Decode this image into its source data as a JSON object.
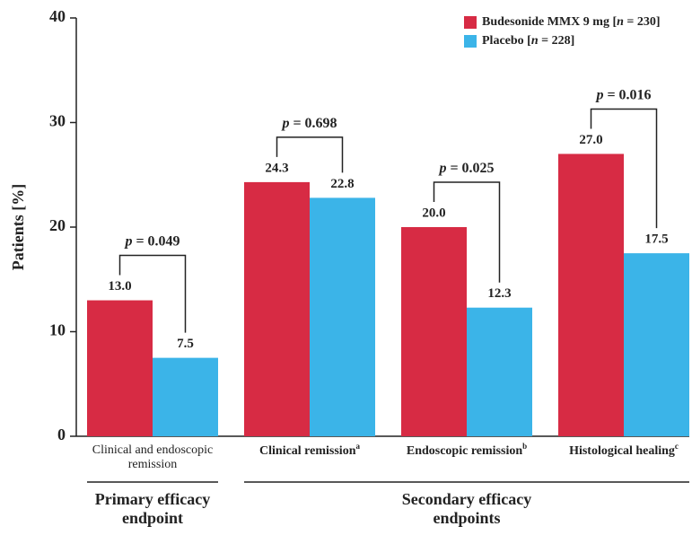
{
  "chart_data": {
    "type": "bar",
    "categories": [
      "Clinical and endoscopic remission",
      "Clinical remission",
      "Endoscopic remission",
      "Histological healing"
    ],
    "category_superscripts": [
      null,
      "a",
      "b",
      "c"
    ],
    "series": [
      {
        "name_bold": "Budesonide MMX 9 mg [",
        "name_italic": "n",
        "name_rest": " = 230]",
        "color": "#d72b44",
        "values": [
          13.0,
          24.3,
          20.0,
          27.0
        ],
        "value_labels": [
          "13.0",
          "24.3",
          "20.0",
          "27.0"
        ]
      },
      {
        "name_bold": "Placebo [",
        "name_italic": "n",
        "name_rest": " = 228]",
        "color": "#3bb4e8",
        "values": [
          7.5,
          22.8,
          12.3,
          17.5
        ],
        "value_labels": [
          "7.5",
          "22.8",
          "12.3",
          "17.5"
        ]
      }
    ],
    "annotations": [
      {
        "italic": "p",
        "text": " = 0.049"
      },
      {
        "italic": "p",
        "text": " = 0.698"
      },
      {
        "italic": "p",
        "text": " = 0.025"
      },
      {
        "italic": "p",
        "text": " = 0.016"
      }
    ],
    "ylabel": "Patients [%]",
    "ylim": [
      0,
      40
    ],
    "yticks": [
      0,
      10,
      20,
      30,
      40
    ],
    "endpoint_groups": [
      {
        "label": "Primary efficacy endpoint",
        "from": 0,
        "to": 0
      },
      {
        "label": "Secondary efficacy endpoints",
        "from": 1,
        "to": 3
      }
    ],
    "legend": "top-right"
  }
}
